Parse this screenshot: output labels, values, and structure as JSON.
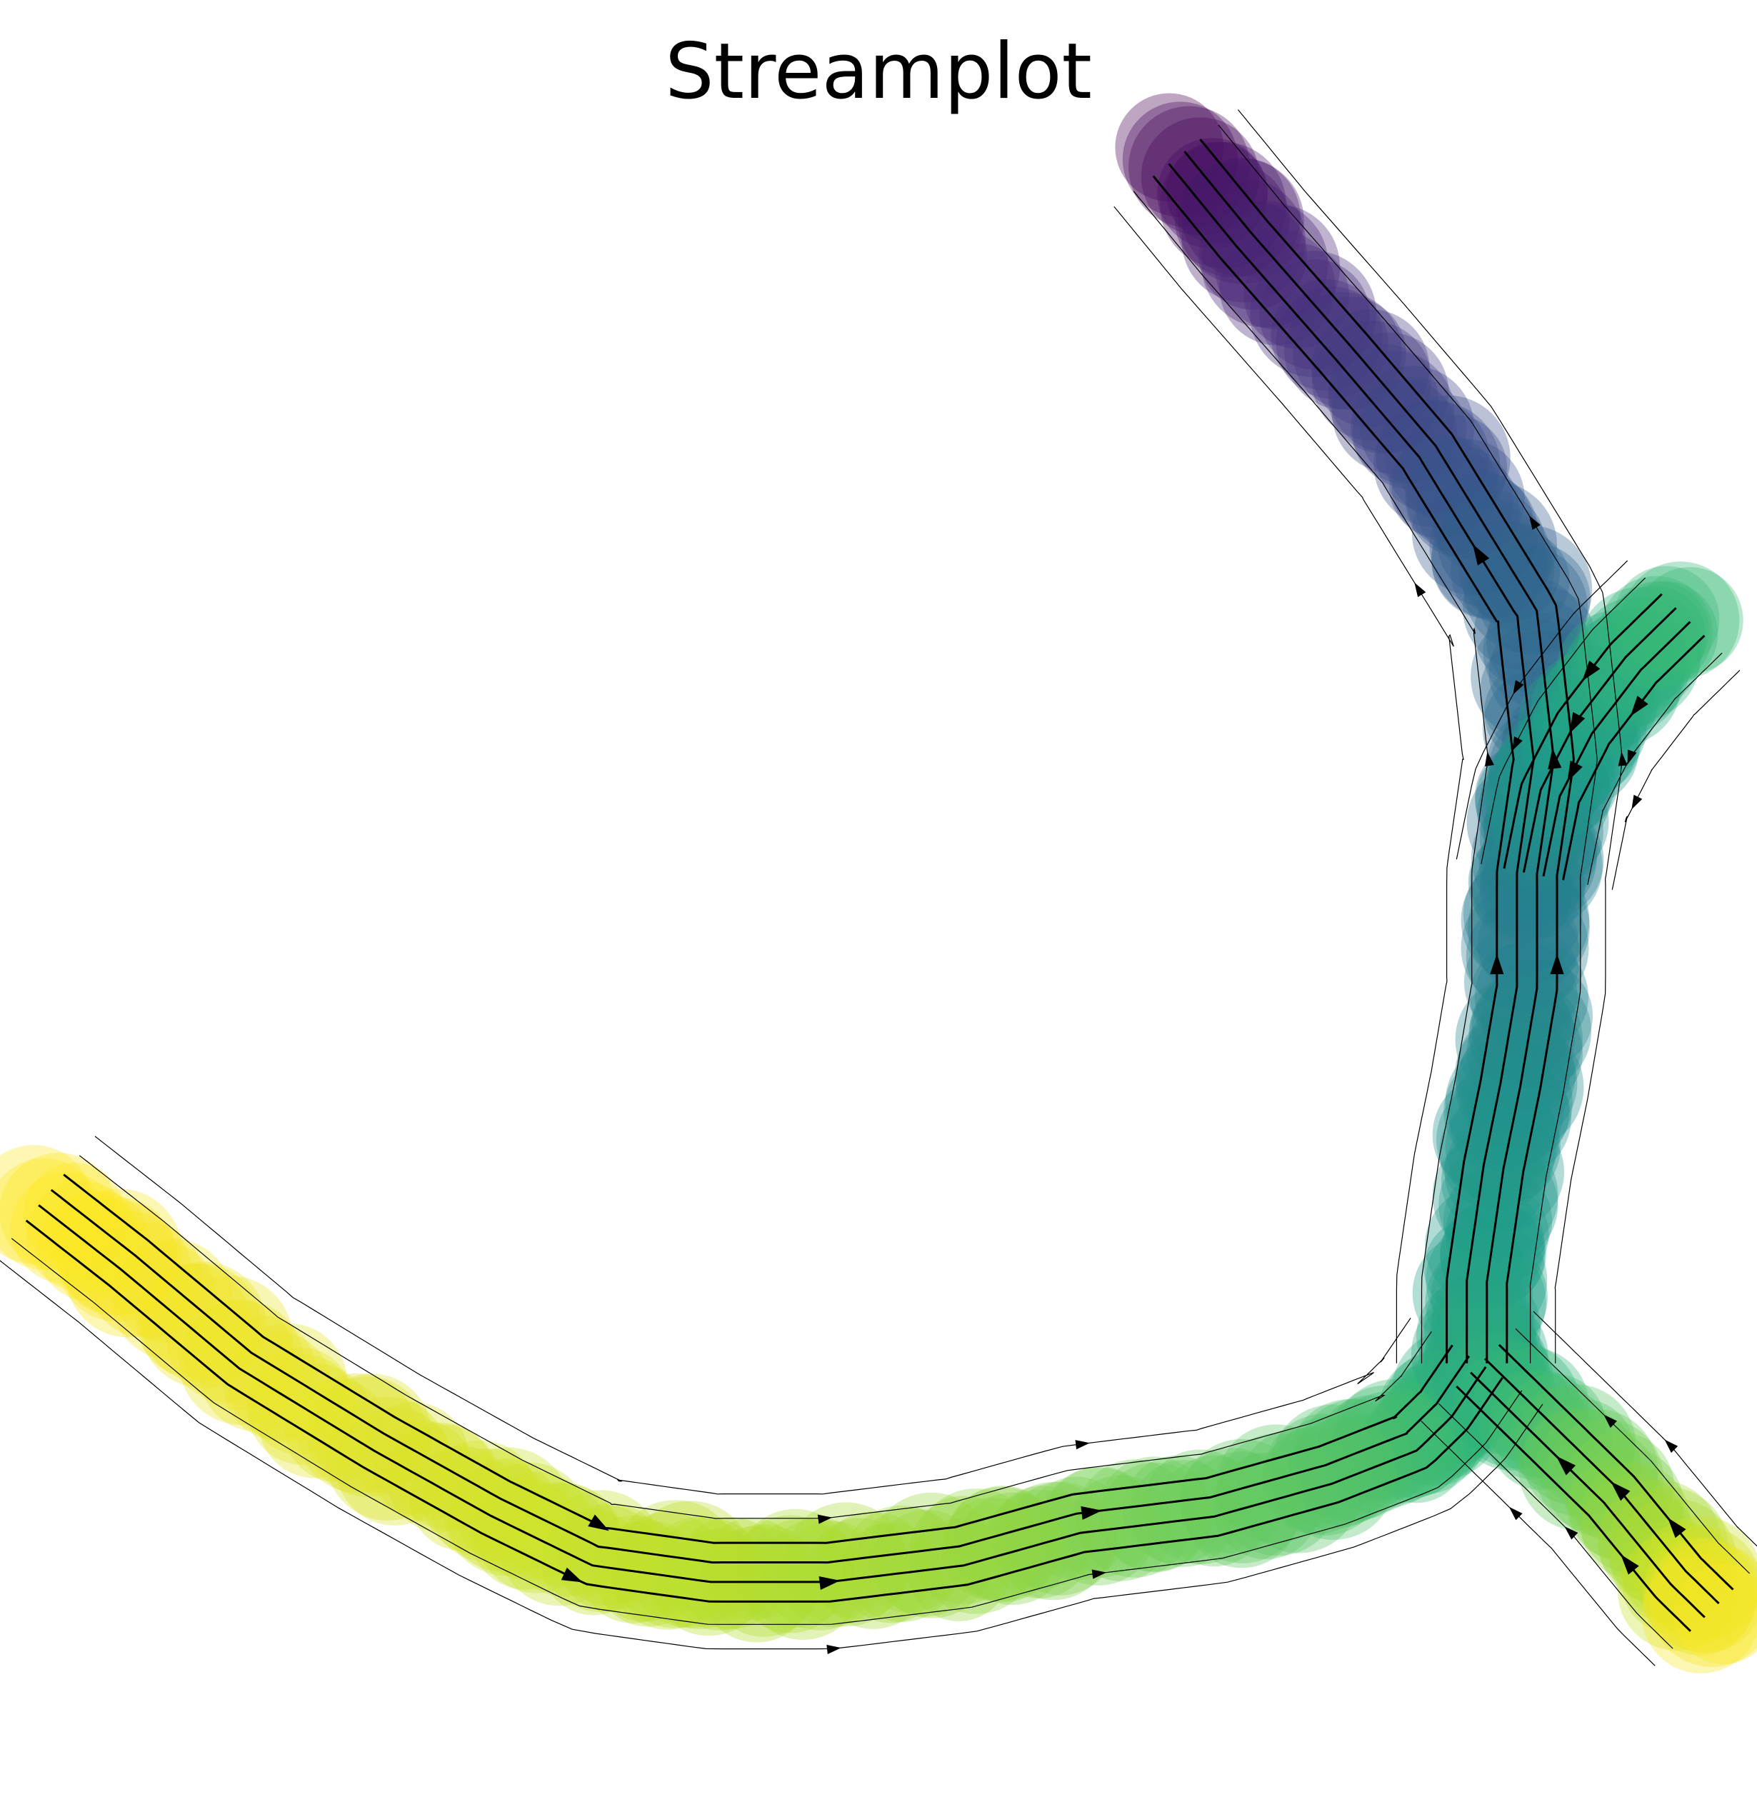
{
  "chart_data": {
    "type": "streamplot",
    "title": "Streamplot",
    "xlabel": "",
    "ylabel": "",
    "axes_visible": false,
    "grid": false,
    "legend": "none",
    "colormap": "viridis",
    "trajectory": {
      "description_free": true,
      "branches": [
        {
          "name": "",
          "path": [
            [
              0.68,
              0.99
            ],
            [
              0.72,
              0.94
            ],
            [
              0.78,
              0.87
            ],
            [
              0.83,
              0.81
            ],
            [
              0.86,
              0.76
            ],
            [
              0.89,
              0.71
            ],
            [
              0.9,
              0.62
            ],
            [
              0.89,
              0.55
            ],
            [
              0.89,
              0.48
            ],
            [
              0.88,
              0.42
            ],
            [
              0.87,
              0.37
            ],
            [
              0.86,
              0.3
            ],
            [
              0.86,
              0.25
            ]
          ],
          "time": [
            0.0,
            0.08,
            0.15,
            0.22,
            0.28,
            0.33,
            0.36,
            0.4,
            0.44,
            0.48,
            0.52,
            0.56,
            0.6
          ]
        },
        {
          "name": "",
          "path": [
            [
              0.86,
              0.25
            ],
            [
              0.84,
              0.22
            ],
            [
              0.82,
              0.2
            ],
            [
              0.77,
              0.18
            ],
            [
              0.7,
              0.16
            ],
            [
              0.62,
              0.15
            ],
            [
              0.55,
              0.13
            ],
            [
              0.47,
              0.12
            ],
            [
              0.4,
              0.12
            ],
            [
              0.33,
              0.13
            ],
            [
              0.27,
              0.16
            ],
            [
              0.2,
              0.2
            ],
            [
              0.12,
              0.25
            ],
            [
              0.05,
              0.31
            ],
            [
              0.0,
              0.35
            ]
          ],
          "time": [
            0.6,
            0.64,
            0.68,
            0.72,
            0.76,
            0.8,
            0.84,
            0.87,
            0.89,
            0.91,
            0.93,
            0.95,
            0.97,
            0.99,
            1.0
          ]
        },
        {
          "name": "",
          "path": [
            [
              0.86,
              0.25
            ],
            [
              0.9,
              0.21
            ],
            [
              0.94,
              0.17
            ],
            [
              0.98,
              0.12
            ],
            [
              1.0,
              0.1
            ]
          ],
          "time": [
            0.6,
            0.7,
            0.8,
            0.9,
            1.0
          ]
        },
        {
          "name": "",
          "path": [
            [
              0.89,
              0.55
            ],
            [
              0.9,
              0.6
            ],
            [
              0.92,
              0.64
            ],
            [
              0.95,
              0.68
            ],
            [
              0.98,
              0.71
            ]
          ],
          "time": [
            0.44,
            0.5,
            0.56,
            0.62,
            0.68
          ]
        }
      ]
    },
    "xlim": [
      0,
      1
    ],
    "ylim": [
      0,
      1
    ]
  }
}
